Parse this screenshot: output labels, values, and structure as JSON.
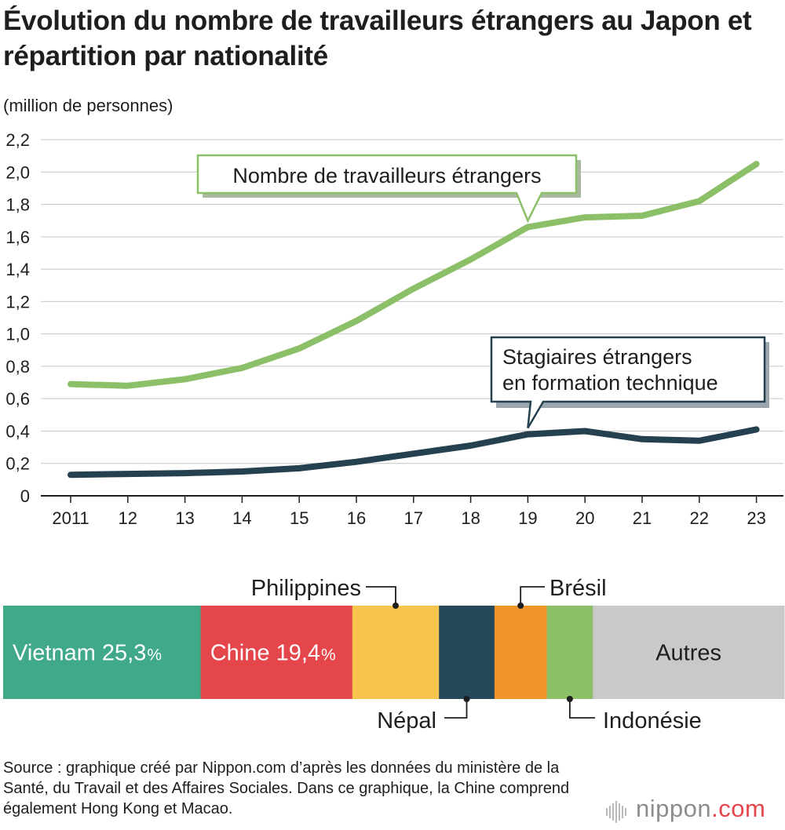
{
  "title": "Évolution du nombre de travailleurs étrangers au Japon et répartition par nationalité",
  "chart_data": [
    {
      "type": "line",
      "ylabel": "(million de personnes)",
      "xlabel": "",
      "ylim": [
        0,
        2.2
      ],
      "yticks": [
        "0",
        "0,2",
        "0,4",
        "0,6",
        "0,8",
        "1,0",
        "1,2",
        "1,4",
        "1,6",
        "1,8",
        "2,0",
        "2,2"
      ],
      "categories": [
        "2011",
        "12",
        "13",
        "14",
        "15",
        "16",
        "17",
        "18",
        "19",
        "20",
        "21",
        "22",
        "23"
      ],
      "grid": true,
      "series": [
        {
          "name": "Nombre de travailleurs étrangers",
          "color": "#8cc068",
          "values": [
            0.69,
            0.68,
            0.72,
            0.79,
            0.91,
            1.08,
            1.28,
            1.46,
            1.66,
            1.72,
            1.73,
            1.82,
            2.05
          ]
        },
        {
          "name": "Stagiaires étrangers en formation technique",
          "label_lines": [
            "Stagiaires étrangers",
            "en formation technique"
          ],
          "color": "#25404e",
          "values": [
            0.13,
            0.135,
            0.14,
            0.15,
            0.17,
            0.21,
            0.26,
            0.31,
            0.38,
            0.4,
            0.35,
            0.34,
            0.41
          ]
        }
      ]
    },
    {
      "type": "bar",
      "orientation": "horizontal-stacked",
      "unit": "%",
      "segments": [
        {
          "name": "Vietnam",
          "value_text": "25,3",
          "pct": "%",
          "value": 25.3,
          "color": "#3fa98a",
          "label_pos": "inside"
        },
        {
          "name": "Chine",
          "value_text": "19,4",
          "pct": "%",
          "value": 19.4,
          "color": "#e5464b",
          "label_pos": "inside"
        },
        {
          "name": "Philippines",
          "value": 11.1,
          "color": "#f7c44d",
          "label_pos": "above"
        },
        {
          "name": "Népal",
          "value": 7.1,
          "color": "#25495a",
          "label_pos": "below"
        },
        {
          "name": "Brésil",
          "value": 6.7,
          "color": "#f0952a",
          "label_pos": "above"
        },
        {
          "name": "Indonésie",
          "value": 5.9,
          "color": "#8cc068",
          "label_pos": "below"
        },
        {
          "name": "Autres",
          "value": 24.5,
          "color": "#c9c9c9",
          "label_pos": "inside"
        }
      ]
    }
  ],
  "source": "Source : graphique créé par Nippon.com d’après les données du ministère de la Santé, du Travail et des Affaires Sociales. Dans ce graphique, la Chine comprend également Hong Kong et Macao.",
  "logo": {
    "text_main": "nippon",
    "text_suffix": ".com",
    "suffix_color": "#e5464b"
  }
}
